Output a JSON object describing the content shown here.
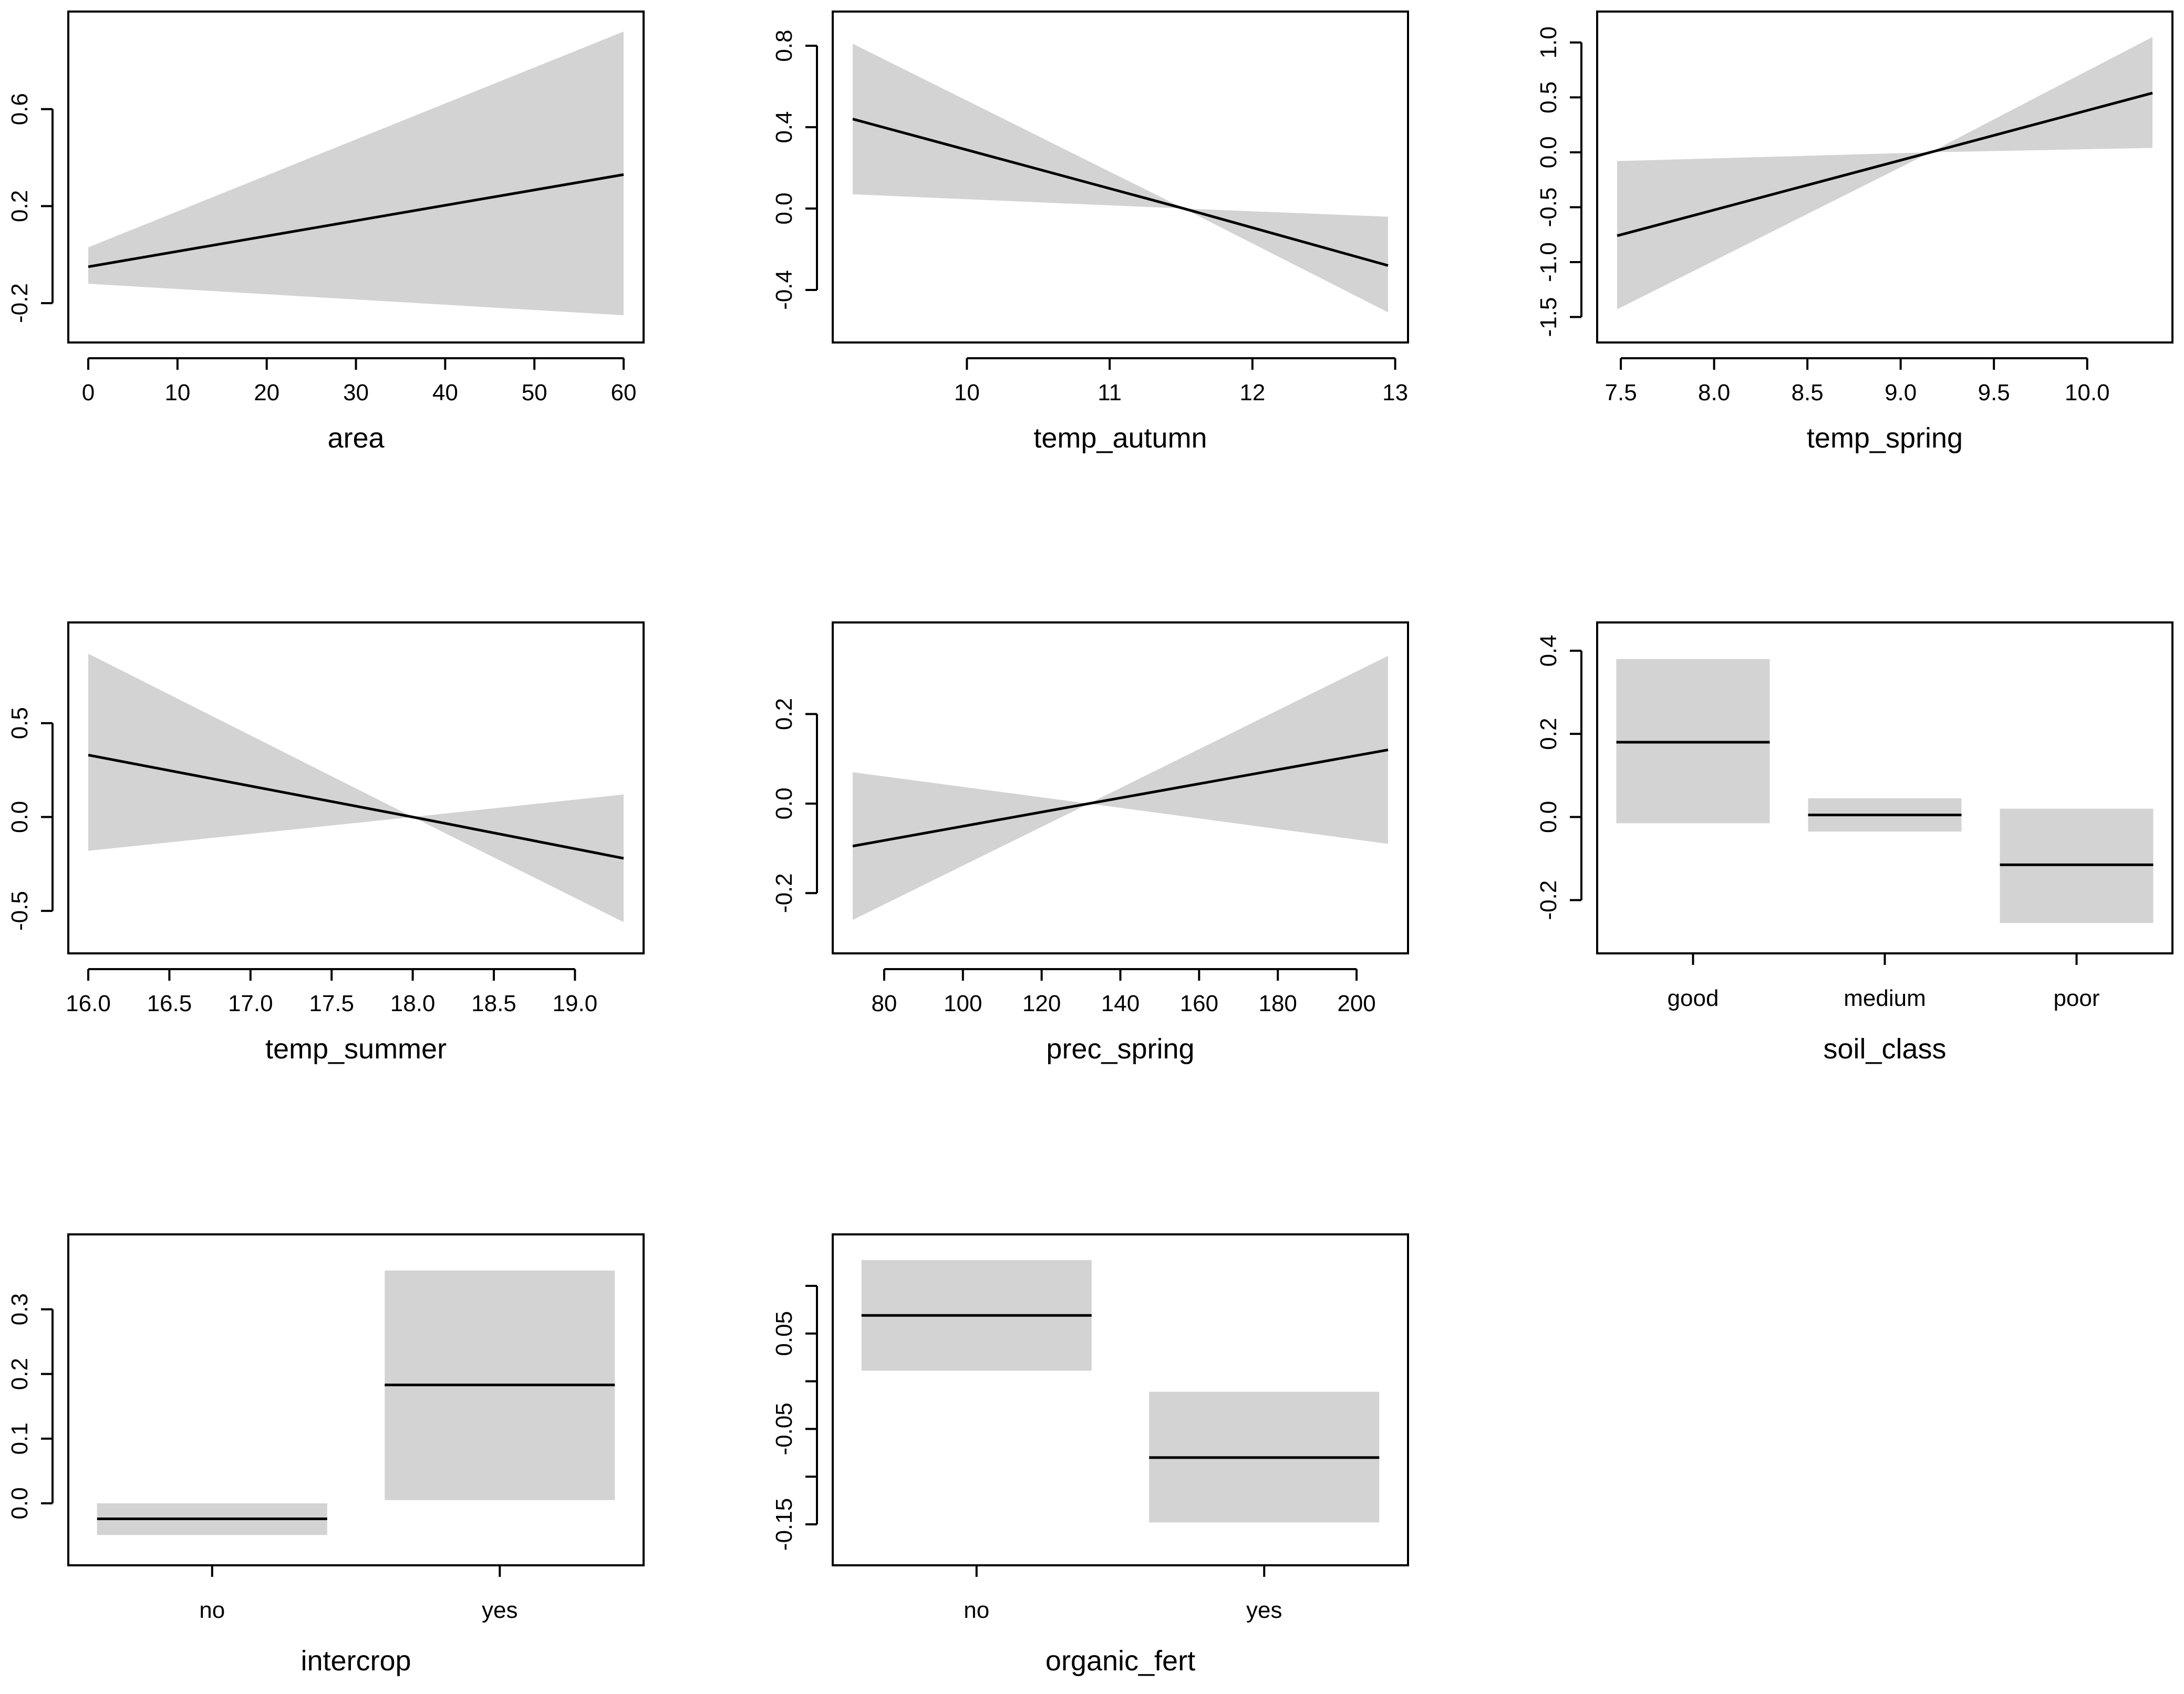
{
  "chart_data": [
    {
      "type": "line",
      "xlabel": "area",
      "kind": "continuous",
      "xlim": [
        0,
        60
      ],
      "ylim": [
        -0.28,
        0.92
      ],
      "xticks": [
        0,
        10,
        20,
        30,
        40,
        50,
        60
      ],
      "yticks": [
        -0.2,
        0.2,
        0.6
      ],
      "ytick_labels": [
        "-0.2",
        "0.2",
        "0.6"
      ],
      "x": [
        0,
        60
      ],
      "fit": [
        -0.05,
        0.33
      ],
      "lower": [
        -0.12,
        -0.25
      ],
      "upper": [
        0.03,
        0.92
      ]
    },
    {
      "type": "line",
      "xlabel": "temp_autumn",
      "kind": "continuous",
      "xlim": [
        9.2,
        12.95
      ],
      "ylim": [
        -0.56,
        0.87
      ],
      "xticks": [
        10,
        11,
        12,
        13
      ],
      "yticks": [
        -0.4,
        0.0,
        0.4,
        0.8
      ],
      "ytick_labels": [
        "-0.4",
        "0.0",
        "0.4",
        "0.8"
      ],
      "x": [
        9.2,
        11.52,
        12.95
      ],
      "fit": [
        0.44,
        0.0,
        -0.28
      ],
      "lower": [
        0.07,
        0.0,
        -0.51
      ],
      "upper": [
        0.81,
        0.0,
        -0.04
      ]
    },
    {
      "type": "line",
      "xlabel": "temp_spring",
      "kind": "continuous",
      "xlim": [
        7.48,
        10.35
      ],
      "ylim": [
        -1.55,
        1.1
      ],
      "xticks": [
        7.5,
        8.0,
        8.5,
        9.0,
        9.5,
        10.0
      ],
      "xtick_labels": [
        "7.5",
        "8.0",
        "8.5",
        "9.0",
        "9.5",
        "10.0"
      ],
      "yticks": [
        -1.5,
        -1.0,
        -0.5,
        0.0,
        0.5,
        1.0
      ],
      "ytick_labels": [
        "-1.5",
        "-1.0",
        "-0.5",
        "0.0",
        "0.5",
        "1.0"
      ],
      "x": [
        7.48,
        9.16,
        10.35
      ],
      "fit": [
        -0.76,
        0.0,
        0.54
      ],
      "lower": [
        -1.43,
        0.0,
        0.04
      ],
      "upper": [
        -0.08,
        0.0,
        1.05
      ]
    },
    {
      "type": "line",
      "xlabel": "temp_summer",
      "kind": "continuous",
      "xlim": [
        16.0,
        19.3
      ],
      "ylim": [
        -0.62,
        0.93
      ],
      "xticks": [
        16.0,
        16.5,
        17.0,
        17.5,
        18.0,
        18.5,
        19.0
      ],
      "xtick_labels": [
        "16.0",
        "16.5",
        "17.0",
        "17.5",
        "18.0",
        "18.5",
        "19.0"
      ],
      "yticks": [
        -0.5,
        0.0,
        0.5
      ],
      "ytick_labels": [
        "-0.5",
        "0.0",
        "0.5"
      ],
      "x": [
        16.0,
        18.0,
        19.3
      ],
      "fit": [
        0.33,
        0.0,
        -0.22
      ],
      "lower": [
        -0.18,
        0.0,
        -0.56
      ],
      "upper": [
        0.87,
        0.0,
        0.12
      ]
    },
    {
      "type": "line",
      "xlabel": "prec_spring",
      "kind": "continuous",
      "xlim": [
        72,
        208
      ],
      "ylim": [
        -0.29,
        0.36
      ],
      "xticks": [
        80,
        100,
        120,
        140,
        160,
        180,
        200
      ],
      "yticks": [
        -0.2,
        0.0,
        0.2
      ],
      "ytick_labels": [
        "-0.2",
        "0.0",
        "0.2"
      ],
      "x": [
        72,
        132,
        208
      ],
      "fit": [
        -0.095,
        0.0,
        0.12
      ],
      "lower": [
        -0.26,
        0.0,
        -0.09
      ],
      "upper": [
        0.07,
        0.0,
        0.33
      ]
    },
    {
      "type": "bar",
      "xlabel": "soil_class",
      "kind": "categorical",
      "categories": [
        "good",
        "medium",
        "poor"
      ],
      "ylim": [
        -0.28,
        0.42
      ],
      "yticks": [
        -0.2,
        0.0,
        0.2,
        0.4
      ],
      "ytick_labels": [
        "-0.2",
        "0.0",
        "0.2",
        "0.4"
      ],
      "values": [
        0.18,
        0.005,
        -0.115
      ],
      "lower": [
        -0.015,
        -0.035,
        -0.255
      ],
      "upper": [
        0.38,
        0.045,
        0.02
      ]
    },
    {
      "type": "bar",
      "xlabel": "intercrop",
      "kind": "categorical",
      "categories": [
        "no",
        "yes"
      ],
      "ylim": [
        -0.065,
        0.385
      ],
      "yticks": [
        0.0,
        0.1,
        0.2,
        0.3
      ],
      "ytick_labels": [
        "0.0",
        "0.1",
        "0.2",
        "0.3"
      ],
      "values": [
        -0.024,
        0.183
      ],
      "lower": [
        -0.049,
        0.005
      ],
      "upper": [
        0.0,
        0.36
      ]
    },
    {
      "type": "bar",
      "xlabel": "organic_fert",
      "kind": "categorical",
      "categories": [
        "no",
        "yes"
      ],
      "ylim": [
        -0.172,
        0.133
      ],
      "yticks": [
        -0.15,
        -0.1,
        -0.05,
        0.0,
        0.05,
        0.1
      ],
      "ytick_labels": [
        "-0.15",
        "",
        "-0.05",
        "",
        "0.05",
        ""
      ],
      "values": [
        0.069,
        -0.08
      ],
      "lower": [
        0.011,
        -0.148
      ],
      "upper": [
        0.127,
        -0.011
      ]
    }
  ]
}
